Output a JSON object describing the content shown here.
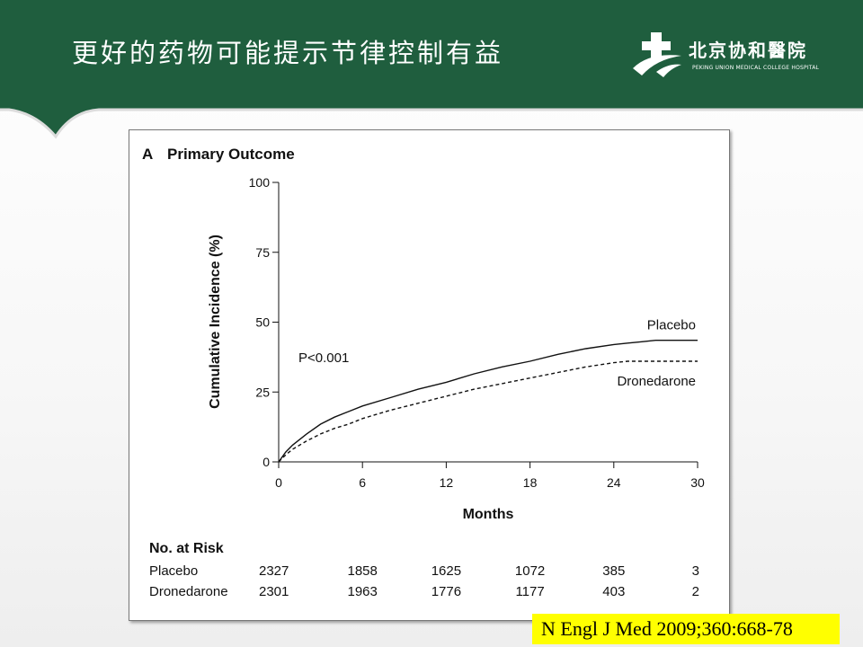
{
  "slide": {
    "title": "更好的药物可能提示节律控制有益",
    "logo_cn": "北京协和醫院",
    "logo_en": "PEKING UNION MEDICAL COLLEGE HOSPITAL"
  },
  "citation": "N Engl J Med 2009;360:668-78",
  "colors": {
    "header_green": "#1f5e3e",
    "citation_highlight": "#ffff00"
  },
  "chart_data": {
    "type": "line",
    "panel_letter": "A",
    "title": "Primary Outcome",
    "xlabel": "Months",
    "ylabel": "Cumulative Incidence (%)",
    "xlim": [
      0,
      30
    ],
    "ylim": [
      0,
      100
    ],
    "xticks": [
      0,
      6,
      12,
      18,
      24,
      30
    ],
    "yticks": [
      0,
      25,
      50,
      75,
      100
    ],
    "annotation": "P<0.001",
    "series": [
      {
        "name": "Placebo",
        "dash": "solid",
        "x": [
          0,
          0.5,
          1,
          2,
          3,
          4,
          5,
          6,
          8,
          10,
          12,
          14,
          16,
          18,
          20,
          22,
          24,
          25,
          26,
          27,
          28,
          29,
          30
        ],
        "y": [
          0,
          3.5,
          6,
          10,
          13.5,
          16,
          18,
          20,
          23,
          26,
          28.5,
          31.5,
          34,
          36,
          38.5,
          40.5,
          42,
          42.5,
          43,
          43.5,
          43.5,
          43.5,
          43.5
        ]
      },
      {
        "name": "Dronedarone",
        "dash": "dashed",
        "x": [
          0,
          0.5,
          1,
          2,
          3,
          4,
          5,
          6,
          8,
          10,
          12,
          14,
          16,
          18,
          20,
          22,
          24,
          25,
          26,
          27,
          28,
          29,
          30
        ],
        "y": [
          0,
          2.5,
          4.5,
          7.5,
          10,
          12,
          13.5,
          15.5,
          18.5,
          21,
          23.5,
          26,
          28,
          30,
          32,
          34,
          35.5,
          36,
          36,
          36,
          36,
          36,
          36
        ]
      }
    ],
    "risk_table": {
      "heading": "No. at Risk",
      "rows": [
        {
          "label": "Placebo",
          "values": [
            "2327",
            "1858",
            "1625",
            "1072",
            "385",
            "3"
          ]
        },
        {
          "label": "Dronedarone",
          "values": [
            "2301",
            "1963",
            "1776",
            "1177",
            "403",
            "2"
          ]
        }
      ]
    }
  }
}
